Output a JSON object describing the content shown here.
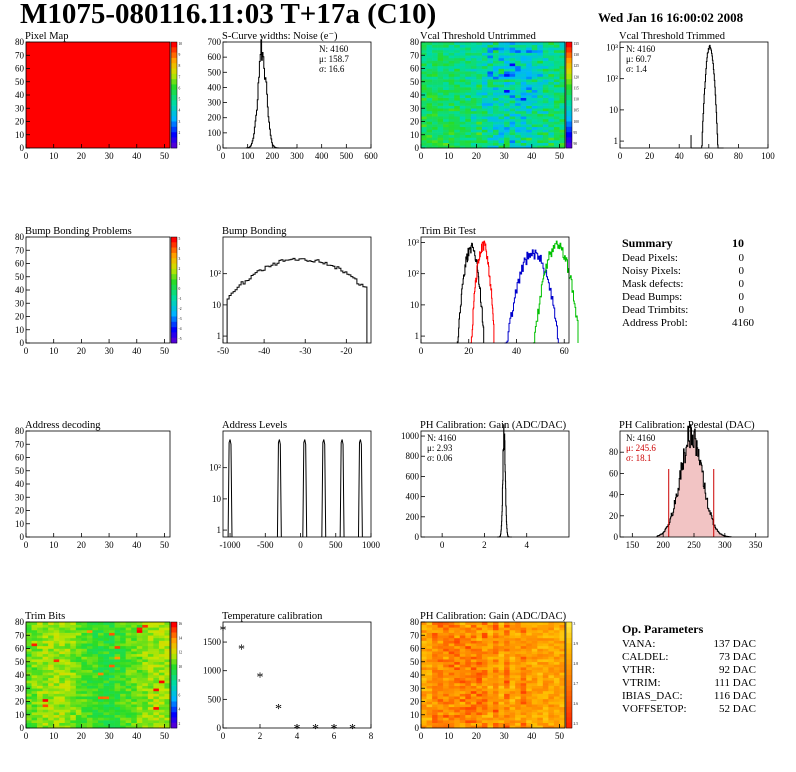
{
  "header": {
    "title": "M1075-080116.11:03 T+17a (C10)",
    "date": "Wed Jan 16 16:00:02 2008"
  },
  "summary": {
    "title": "Summary",
    "value": "10",
    "rows": [
      {
        "label": "Dead Pixels:",
        "value": "0"
      },
      {
        "label": "Noisy Pixels:",
        "value": "0"
      },
      {
        "label": "Mask defects:",
        "value": "0"
      },
      {
        "label": "Dead Bumps:",
        "value": "0"
      },
      {
        "label": "Dead Trimbits:",
        "value": "0"
      },
      {
        "label": "Address Probl:",
        "value": "4160"
      }
    ]
  },
  "op_params": {
    "title": "Op. Parameters",
    "rows": [
      {
        "label": "VANA:",
        "value": "137 DAC"
      },
      {
        "label": "CALDEL:",
        "value": "73 DAC"
      },
      {
        "label": "VTHR:",
        "value": "92 DAC"
      },
      {
        "label": "VTRIM:",
        "value": "111 DAC"
      },
      {
        "label": "IBIAS_DAC:",
        "value": "116 DAC"
      },
      {
        "label": "VOFFSETOP:",
        "value": "52 DAC"
      }
    ]
  },
  "colors": {
    "red": "#ff0000",
    "green": "#00c000",
    "blue": "#0000cc",
    "hatch": "#cc0000"
  },
  "chart_data": [
    {
      "id": "pixel-map",
      "type": "heatmap",
      "title": "Pixel Map",
      "xlim": [
        0,
        52
      ],
      "ylim": [
        0,
        80
      ],
      "xticks": [
        0,
        10,
        20,
        30,
        40,
        50
      ],
      "yticks": [
        0,
        10,
        20,
        30,
        40,
        50,
        60,
        70,
        80
      ],
      "pattern": "uniform",
      "fill": "#ff0000",
      "palette": "rainbow",
      "zticks": [
        "10",
        "9",
        "8",
        "7",
        "6",
        "5",
        "4",
        "3",
        "2",
        "1"
      ]
    },
    {
      "id": "scurve-noise",
      "type": "histogram",
      "title": "S-Curve widths: Noise (e⁻)",
      "xlim": [
        0,
        600
      ],
      "ylim": [
        0,
        700
      ],
      "xticks": [
        0,
        100,
        200,
        300,
        400,
        500,
        600
      ],
      "yticks": [
        0,
        100,
        200,
        300,
        400,
        500,
        600,
        700
      ],
      "stats": [
        "N: 4160",
        "μ: 158.7",
        "σ: 16.6"
      ],
      "peaks": [
        {
          "center": 158.7,
          "sigma": 16.6,
          "height": 660
        }
      ],
      "range": [
        95,
        300
      ]
    },
    {
      "id": "vcal-untrimmed",
      "type": "heatmap",
      "title": "Vcal Threshold Untrimmed",
      "xlim": [
        0,
        52
      ],
      "ylim": [
        0,
        80
      ],
      "xticks": [
        0,
        10,
        20,
        30,
        40,
        50
      ],
      "yticks": [
        0,
        10,
        20,
        30,
        40,
        50,
        60,
        70,
        80
      ],
      "pattern": "untrimmed",
      "palette": "rainbow",
      "zticks": [
        "135",
        "130",
        "125",
        "120",
        "115",
        "110",
        "105",
        "100",
        "95",
        "90"
      ]
    },
    {
      "id": "vcal-trimmed",
      "type": "histogram",
      "title": "Vcal Threshold Trimmed",
      "xlim": [
        0,
        100
      ],
      "ylim": [
        0.6,
        1500
      ],
      "log": true,
      "xticks": [
        0,
        20,
        40,
        60,
        80,
        100
      ],
      "yticks": [
        1,
        10,
        100,
        1000
      ],
      "stats": [
        "N: 4160",
        "μ: 60.7",
        "σ: 1.4"
      ],
      "peaks": [
        {
          "center": 60.7,
          "sigma": 1.4,
          "height": 1100
        }
      ],
      "range": [
        48,
        70
      ],
      "extra": [
        [
          48,
          1
        ]
      ]
    },
    {
      "id": "bump-problems",
      "type": "heatmap",
      "title": "Bump Bonding Problems",
      "xlim": [
        0,
        52
      ],
      "ylim": [
        0,
        80
      ],
      "xticks": [
        0,
        10,
        20,
        30,
        40,
        50
      ],
      "yticks": [
        0,
        10,
        20,
        30,
        40,
        50,
        60,
        70,
        80
      ],
      "pattern": "empty",
      "palette": "rainbow",
      "zticks": [
        "5",
        "4",
        "3",
        "2",
        "1",
        "0",
        "-1",
        "-2",
        "-3",
        "-4",
        "-5"
      ]
    },
    {
      "id": "bump-bonding",
      "type": "histogram",
      "title": "Bump Bonding",
      "xlim": [
        -50,
        -14
      ],
      "ylim": [
        0.6,
        1500
      ],
      "log": true,
      "xticks": [
        -50,
        -40,
        -30,
        -20
      ],
      "yticks": [
        1,
        10,
        100
      ],
      "peaks": [
        {
          "center": -31,
          "sigma": 7.5,
          "height": 300
        }
      ],
      "range": [
        -49,
        -15
      ]
    },
    {
      "id": "trim-bit-test",
      "type": "histogram",
      "title": "Trim Bit Test",
      "xlim": [
        0,
        62
      ],
      "ylim": [
        0.6,
        1500
      ],
      "log": true,
      "xticks": [
        0,
        20,
        40,
        60
      ],
      "yticks": [
        1,
        10,
        100,
        1000
      ],
      "series": [
        {
          "name": "trim-bit-1",
          "color": "#000000",
          "center": 21,
          "sigma": 1.5,
          "height": 700
        },
        {
          "name": "trim-bit-2",
          "color": "#ff0000",
          "center": 26,
          "sigma": 1.3,
          "height": 900
        },
        {
          "name": "trim-bit-3",
          "color": "#0000cc",
          "center": 47,
          "sigma": 3.0,
          "height": 500
        },
        {
          "name": "trim-bit-4",
          "color": "#00c000",
          "center": 57,
          "sigma": 2.5,
          "height": 900
        }
      ]
    },
    {
      "id": "address-decoding",
      "type": "heatmap",
      "title": "Address decoding",
      "xlim": [
        0,
        52
      ],
      "ylim": [
        0,
        80
      ],
      "xticks": [
        0,
        10,
        20,
        30,
        40,
        50
      ],
      "yticks": [
        0,
        10,
        20,
        30,
        40,
        50,
        60,
        70,
        80
      ],
      "pattern": "empty"
    },
    {
      "id": "address-levels",
      "type": "histogram",
      "title": "Address Levels",
      "xlim": [
        -1100,
        1000
      ],
      "ylim": [
        0.6,
        1500
      ],
      "log": true,
      "xticks": [
        -1000,
        -500,
        0,
        500,
        1000
      ],
      "yticks": [
        1,
        10,
        100
      ],
      "spikes": [
        -1000,
        -300,
        60,
        330,
        590,
        850
      ],
      "spike_height": 800,
      "spike_width": 55
    },
    {
      "id": "ph-gain",
      "type": "histogram",
      "title": "PH Calibration: Gain (ADC/DAC)",
      "xlim": [
        -1,
        6
      ],
      "ylim": [
        0,
        1050
      ],
      "xticks": [
        0,
        2,
        4
      ],
      "yticks": [
        0,
        200,
        400,
        600,
        800,
        1000
      ],
      "stats": [
        "N: 4160",
        "μ: 2.93",
        "σ: 0.06"
      ],
      "peaks": [
        {
          "center": 2.93,
          "sigma": 0.06,
          "height": 1000
        }
      ],
      "range": [
        2.6,
        3.3
      ]
    },
    {
      "id": "ph-pedestal",
      "type": "histogram",
      "title": "PH Calibration: Pedestal (DAC)",
      "xlim": [
        130,
        370
      ],
      "ylim": [
        0,
        100
      ],
      "xticks": [
        150,
        200,
        250,
        300,
        350
      ],
      "yticks": [
        0,
        20,
        40,
        60,
        80
      ],
      "stats": [
        "N: 4160",
        "μ: 245.6",
        "σ: 18.1"
      ],
      "stats_colors": [
        "#000000",
        "#cc0000",
        "#cc0000"
      ],
      "peaks": [
        {
          "center": 245.6,
          "sigma": 18.1,
          "height": 95
        }
      ],
      "range": [
        190,
        310
      ],
      "hatched": true,
      "cut_lines": [
        209,
        282
      ]
    },
    {
      "id": "trim-bits",
      "type": "heatmap",
      "title": "Trim Bits",
      "xlim": [
        0,
        52
      ],
      "ylim": [
        0,
        80
      ],
      "xticks": [
        0,
        10,
        20,
        30,
        40,
        50
      ],
      "yticks": [
        0,
        10,
        20,
        30,
        40,
        50,
        60,
        70,
        80
      ],
      "pattern": "trimbits",
      "palette": "rainbow",
      "zticks": [
        "16",
        "14",
        "12",
        "10",
        "8",
        "6",
        "4",
        "2"
      ]
    },
    {
      "id": "temperature-calibration",
      "type": "scatter",
      "title": "Temperature calibration",
      "xlim": [
        0,
        8
      ],
      "ylim": [
        0,
        1850
      ],
      "xticks": [
        0,
        2,
        4,
        6,
        8
      ],
      "yticks": [
        0,
        500,
        1000,
        1500
      ],
      "x": [
        0,
        1,
        2,
        3,
        4,
        5,
        6,
        7
      ],
      "y": [
        1720,
        1390,
        900,
        350,
        0,
        0,
        0,
        0
      ]
    },
    {
      "id": "ph-gain-map",
      "type": "heatmap",
      "title": "PH Calibration: Gain (ADC/DAC)",
      "xlim": [
        0,
        52
      ],
      "ylim": [
        0,
        80
      ],
      "xticks": [
        0,
        10,
        20,
        30,
        40,
        50
      ],
      "yticks": [
        0,
        10,
        20,
        30,
        40,
        50,
        60,
        70,
        80
      ],
      "pattern": "gainmap",
      "palette": "gain",
      "zticks": [
        "3",
        "2.9",
        "2.8",
        "2.7",
        "2.6",
        "2.5"
      ]
    }
  ]
}
